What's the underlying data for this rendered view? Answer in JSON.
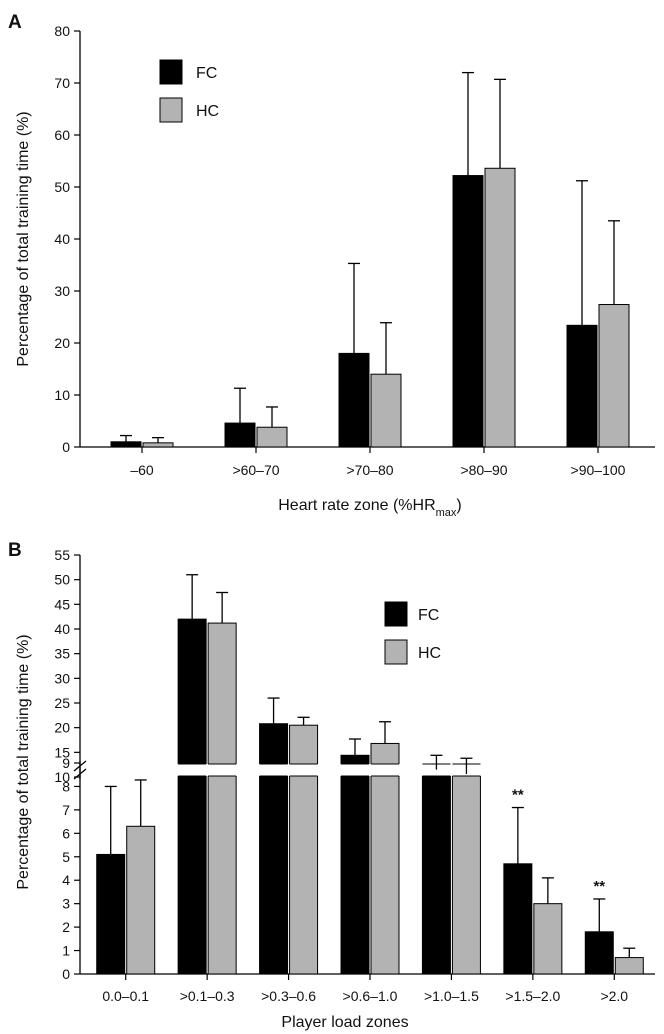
{
  "chart_data": [
    {
      "panel": "A",
      "type": "bar",
      "xlabel": "Heart rate zone (%HR",
      "xlabel_sub": "max",
      "xlabel_end": ")",
      "ylabel": "Percentage of total training time (%)",
      "ylim": [
        0,
        80
      ],
      "yticks": [
        0,
        10,
        20,
        30,
        40,
        50,
        60,
        70,
        80
      ],
      "categories": [
        "–60",
        ">60–70",
        ">70–80",
        ">80–90",
        ">90–100"
      ],
      "series": [
        {
          "name": "FC",
          "color": "#000000",
          "values": [
            1.0,
            4.6,
            18.0,
            52.2,
            23.4
          ],
          "errors": [
            1.2,
            6.7,
            17.3,
            19.8,
            27.8
          ]
        },
        {
          "name": "HC",
          "color": "#b3b3b3",
          "values": [
            0.8,
            3.8,
            14.0,
            53.6,
            27.4
          ],
          "errors": [
            1.0,
            3.9,
            9.9,
            17.1,
            16.1
          ]
        }
      ],
      "legend_position": "top-left",
      "grid": false
    },
    {
      "panel": "B",
      "type": "bar",
      "xlabel": "Player load zones",
      "ylabel": "Percentage of total training time (%)",
      "axis_break": [
        9,
        10
      ],
      "yticks_lower": [
        0,
        1,
        2,
        3,
        4,
        5,
        6,
        7,
        8,
        9
      ],
      "yticks_upper": [
        10,
        15,
        20,
        25,
        30,
        35,
        40,
        45,
        50,
        55
      ],
      "categories": [
        "0.0–0.1",
        ">0.1–0.3",
        ">0.3–0.6",
        ">0.6–1.0",
        ">1.0–1.5",
        ">1.5–2.0",
        ">2.0"
      ],
      "series": [
        {
          "name": "FC",
          "color": "#000000",
          "values": [
            5.1,
            42.0,
            20.8,
            14.4,
            11.5,
            4.7,
            1.8
          ],
          "errors": [
            2.9,
            9.0,
            5.2,
            3.3,
            2.9,
            2.4,
            1.4
          ]
        },
        {
          "name": "HC",
          "color": "#b3b3b3",
          "values": [
            6.3,
            41.2,
            20.5,
            16.8,
            10.6,
            3.0,
            0.7
          ],
          "errors": [
            3.1,
            6.2,
            1.6,
            4.4,
            3.2,
            1.1,
            0.4
          ]
        }
      ],
      "annotations": [
        {
          "category": ">1.5–2.0",
          "text": "**"
        },
        {
          "category": ">2.0",
          "text": "**"
        }
      ],
      "legend_position": "top-right",
      "grid": false
    }
  ]
}
